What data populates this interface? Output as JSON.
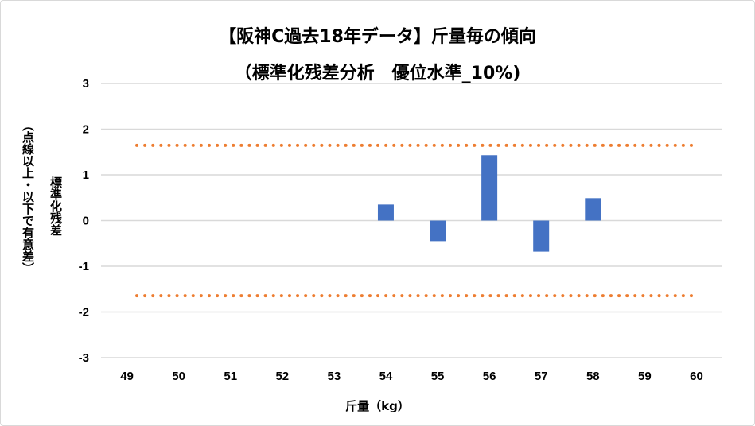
{
  "chart_data": {
    "type": "bar",
    "title": "【阪神C過去18年データ】斤量毎の傾向",
    "subtitle": "（標準化残差分析　優位水準_10%)",
    "xlabel": "斤量（kg）",
    "ylabel": "標準化残差",
    "ylabel2": "（点線以上・以下で有意差）",
    "categories": [
      "49",
      "50",
      "51",
      "52",
      "53",
      "54",
      "55",
      "56",
      "57",
      "58",
      "59",
      "60"
    ],
    "values": [
      null,
      null,
      null,
      null,
      null,
      0.35,
      -0.45,
      1.43,
      -0.68,
      0.49,
      null,
      null
    ],
    "ylim": [
      -3,
      3
    ],
    "yticks": [
      3,
      2,
      1,
      0,
      -1,
      -2,
      -3
    ],
    "threshold_lines": [
      1.645,
      -1.645
    ],
    "grid": true,
    "bar_color": "#4472C4",
    "threshold_color": "#ED7D31"
  }
}
